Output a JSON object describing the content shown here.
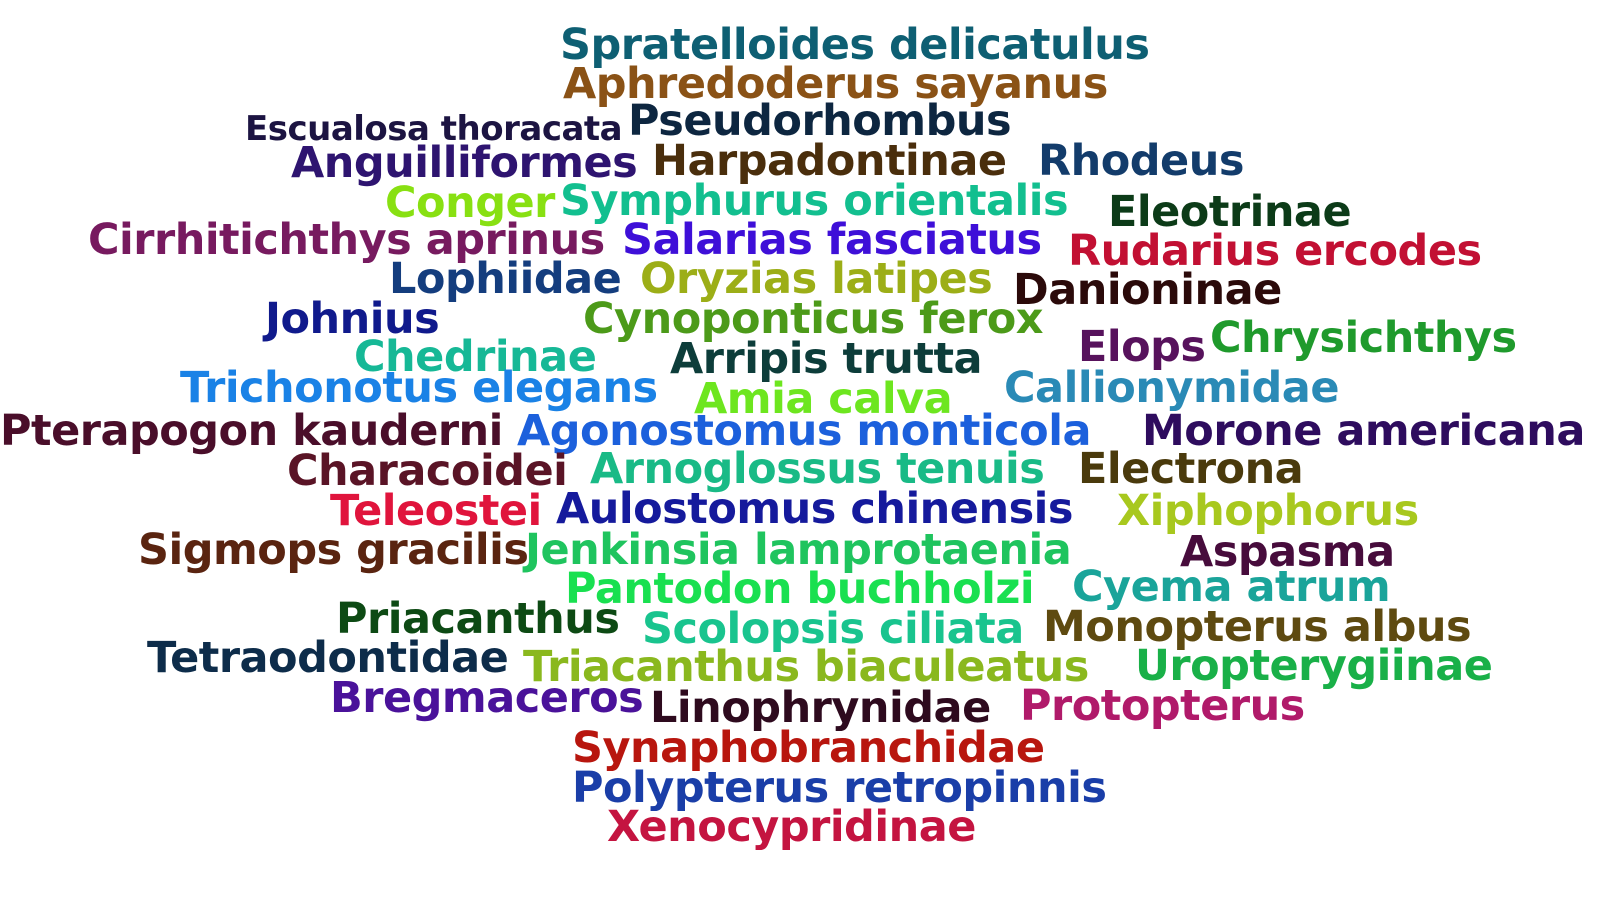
{
  "words": [
    {
      "text": "Spratelloides delicatulus",
      "color": "#0e5f73"
    },
    {
      "text": "Aphredoderus sayanus",
      "color": "#8a5216"
    },
    {
      "text": "Escualosa thoracata",
      "color": "#1c1442"
    },
    {
      "text": "Pseudorhombus",
      "color": "#0d2640"
    },
    {
      "text": "Anguilliformes",
      "color": "#2e1470"
    },
    {
      "text": "Harpadontinae",
      "color": "#4a2e0c"
    },
    {
      "text": "Rhodeus",
      "color": "#133c6b"
    },
    {
      "text": "Conger",
      "color": "#88e012"
    },
    {
      "text": "Symphurus orientalis",
      "color": "#12bf8f"
    },
    {
      "text": "Eleotrinae",
      "color": "#0c3b18"
    },
    {
      "text": "Cirrhitichthys aprinus",
      "color": "#771a5f"
    },
    {
      "text": "Salarias fasciatus",
      "color": "#3e0fd8"
    },
    {
      "text": "Rudarius ercodes",
      "color": "#c21033"
    },
    {
      "text": "Lophiidae",
      "color": "#143d7e"
    },
    {
      "text": "Oryzias latipes",
      "color": "#9cae17"
    },
    {
      "text": "Danioninae",
      "color": "#2b0a0a"
    },
    {
      "text": "Johnius",
      "color": "#101a8c"
    },
    {
      "text": "Cynoponticus ferox",
      "color": "#4c9a19"
    },
    {
      "text": "Elops",
      "color": "#57125c"
    },
    {
      "text": "Chrysichthys",
      "color": "#1f9a2c"
    },
    {
      "text": "Chedrinae",
      "color": "#16b896"
    },
    {
      "text": "Arripis trutta",
      "color": "#0d3d3a"
    },
    {
      "text": "Trichonotus elegans",
      "color": "#1a82e6"
    },
    {
      "text": "Amia calva",
      "color": "#6de61f"
    },
    {
      "text": "Callionymidae",
      "color": "#2a8ab6"
    },
    {
      "text": "Pterapogon kauderni",
      "color": "#4a0e2a"
    },
    {
      "text": "Agonostomus monticola",
      "color": "#1c60dc"
    },
    {
      "text": "Morone americana",
      "color": "#2e0c5e"
    },
    {
      "text": "Characoidei",
      "color": "#5a1426"
    },
    {
      "text": "Arnoglossus tenuis",
      "color": "#19ba86"
    },
    {
      "text": "Electrona",
      "color": "#4a3a0c"
    },
    {
      "text": "Teleostei",
      "color": "#e0143c"
    },
    {
      "text": "Aulostomus chinensis",
      "color": "#151a9c"
    },
    {
      "text": "Xiphophorus",
      "color": "#a8c81e"
    },
    {
      "text": "Sigmops gracilis",
      "color": "#5a2410"
    },
    {
      "text": "Jenkinsia lamprotaenia",
      "color": "#1fc45e"
    },
    {
      "text": "Aspasma",
      "color": "#470c3c"
    },
    {
      "text": "Pantodon buchholzi",
      "color": "#19e050"
    },
    {
      "text": "Cyema atrum",
      "color": "#1aa49a"
    },
    {
      "text": "Priacanthus",
      "color": "#0d4a14"
    },
    {
      "text": "Scolopsis ciliata",
      "color": "#19c48e"
    },
    {
      "text": "Monopterus albus",
      "color": "#5e4a10"
    },
    {
      "text": "Tetraodontidae",
      "color": "#0d2c4a"
    },
    {
      "text": "Triacanthus biaculeatus",
      "color": "#8ab81e"
    },
    {
      "text": "Uropterygiinae",
      "color": "#19b048"
    },
    {
      "text": "Bregmaceros",
      "color": "#4a129a"
    },
    {
      "text": "Linophrynidae",
      "color": "#2e0a1e"
    },
    {
      "text": "Protopterus",
      "color": "#b01a6a"
    },
    {
      "text": "Synaphobranchidae",
      "color": "#b8160e"
    },
    {
      "text": "Polypterus retropinnis",
      "color": "#1a3ea8"
    },
    {
      "text": "Xenocypridinae",
      "color": "#c41440"
    }
  ]
}
